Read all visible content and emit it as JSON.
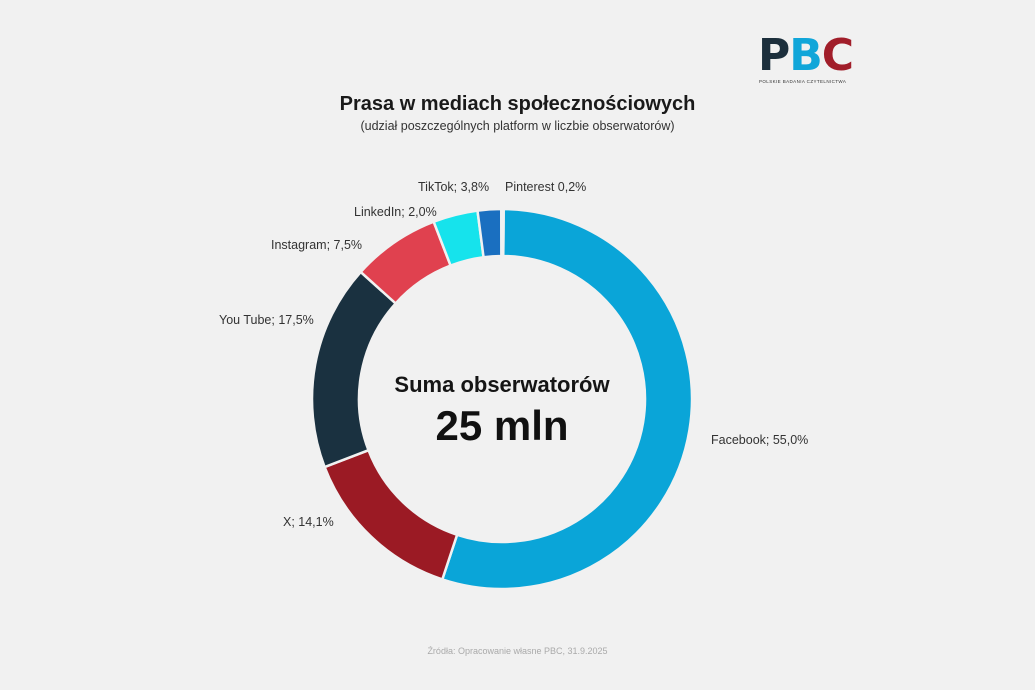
{
  "logo": {
    "p": "P",
    "b": "B",
    "c": "C",
    "tagline": "POLSKIE BADANIA CZYTELNICTWA"
  },
  "header": {
    "title": "Prasa w mediach społecznościowych",
    "subtitle": "(udział poszczególnych platform w liczbie obserwatorów)"
  },
  "center": {
    "label": "Suma obserwatorów",
    "value": "25 mln"
  },
  "labels": {
    "facebook": "Facebook; 55,0%",
    "x": "X; 14,1%",
    "youtube": "You Tube; 17,5%",
    "instagram": "Instagram; 7,5%",
    "linkedin": "LinkedIn; 2,0%",
    "tiktok": "TikTok; 3,8%",
    "pinterest": "Pinterest 0,2%"
  },
  "source": "Źródła: Opracowanie własne PBC, 31.9.2025",
  "chart_data": {
    "type": "pie",
    "variant": "donut",
    "title": "Prasa w mediach społecznościowych",
    "subtitle": "(udział poszczególnych platform w liczbie obserwatorów)",
    "center_text": [
      "Suma obserwatorów",
      "25 mln"
    ],
    "categories": [
      "Facebook",
      "X",
      "You Tube",
      "Instagram",
      "TikTok",
      "LinkedIn",
      "Pinterest"
    ],
    "values": [
      55.0,
      14.1,
      17.5,
      7.5,
      3.8,
      2.0,
      0.2
    ],
    "unit": "%",
    "colors": [
      "#0aa5d8",
      "#9b1a24",
      "#1a3140",
      "#e0414f",
      "#16e3ec",
      "#1a6fc0",
      "#9fd3ea"
    ],
    "start_angle": "12 o'clock, clockwise",
    "legend": "none (direct labels)"
  }
}
